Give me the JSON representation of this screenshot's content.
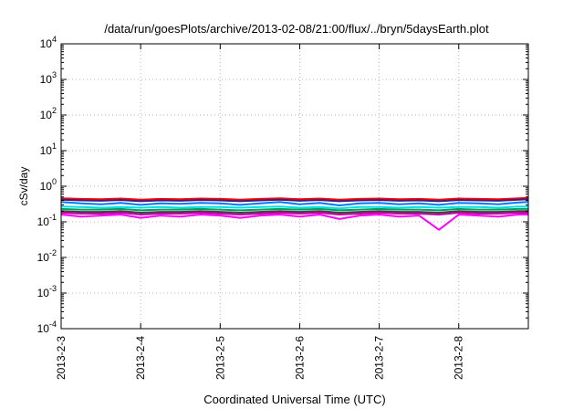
{
  "chart_data": {
    "type": "line",
    "title": "/data/run/goesPlots/archive/2013-02-08/21:00/flux/../bryn/5daysEarth.plot",
    "xlabel": "Coordinated Universal Time (UTC)",
    "ylabel": "cSv/day",
    "yscale": "log",
    "ylim": [
      0.0001,
      10000
    ],
    "xlim": [
      "2013-02-03",
      "2013-02-08 21:00"
    ],
    "grid": true,
    "y_ticks": [
      {
        "base": "10",
        "exp": "-4",
        "value": 0.0001
      },
      {
        "base": "10",
        "exp": "-3",
        "value": 0.001
      },
      {
        "base": "10",
        "exp": "-2",
        "value": 0.01
      },
      {
        "base": "10",
        "exp": "-1",
        "value": 0.1
      },
      {
        "base": "10",
        "exp": "0",
        "value": 1
      },
      {
        "base": "10",
        "exp": "1",
        "value": 10
      },
      {
        "base": "10",
        "exp": "2",
        "value": 100
      },
      {
        "base": "10",
        "exp": "3",
        "value": 1000
      },
      {
        "base": "10",
        "exp": "4",
        "value": 10000
      }
    ],
    "x_ticks": [
      "2013-2-3",
      "2013-2-4",
      "2013-2-5",
      "2013-2-6",
      "2013-2-7",
      "2013-2-8"
    ],
    "x": [
      "2013-02-03 00:00",
      "2013-02-03 06:00",
      "2013-02-03 12:00",
      "2013-02-03 18:00",
      "2013-02-04 00:00",
      "2013-02-04 06:00",
      "2013-02-04 12:00",
      "2013-02-04 18:00",
      "2013-02-05 00:00",
      "2013-02-05 06:00",
      "2013-02-05 12:00",
      "2013-02-05 18:00",
      "2013-02-06 00:00",
      "2013-02-06 06:00",
      "2013-02-06 12:00",
      "2013-02-06 18:00",
      "2013-02-07 00:00",
      "2013-02-07 06:00",
      "2013-02-07 12:00",
      "2013-02-07 18:00",
      "2013-02-08 00:00",
      "2013-02-08 06:00",
      "2013-02-08 12:00",
      "2013-02-08 18:00",
      "2013-02-08 21:00"
    ],
    "series": [
      {
        "color": "#ff0000",
        "values": [
          0.46,
          0.44,
          0.43,
          0.45,
          0.42,
          0.44,
          0.43,
          0.45,
          0.44,
          0.42,
          0.44,
          0.46,
          0.43,
          0.45,
          0.42,
          0.44,
          0.45,
          0.43,
          0.44,
          0.42,
          0.45,
          0.44,
          0.43,
          0.46,
          0.47
        ]
      },
      {
        "color": "#3c1e78",
        "values": [
          0.42,
          0.4,
          0.39,
          0.41,
          0.38,
          0.4,
          0.39,
          0.41,
          0.4,
          0.38,
          0.4,
          0.42,
          0.39,
          0.41,
          0.38,
          0.4,
          0.41,
          0.39,
          0.4,
          0.38,
          0.41,
          0.4,
          0.39,
          0.42,
          0.43
        ]
      },
      {
        "color": "#0078ff",
        "values": [
          0.36,
          0.33,
          0.31,
          0.34,
          0.3,
          0.33,
          0.32,
          0.34,
          0.33,
          0.3,
          0.33,
          0.36,
          0.31,
          0.34,
          0.29,
          0.33,
          0.34,
          0.31,
          0.33,
          0.3,
          0.34,
          0.33,
          0.31,
          0.35,
          0.36
        ]
      },
      {
        "color": "#00e0e0",
        "values": [
          0.27,
          0.26,
          0.25,
          0.26,
          0.25,
          0.26,
          0.25,
          0.26,
          0.26,
          0.25,
          0.26,
          0.27,
          0.25,
          0.26,
          0.24,
          0.26,
          0.26,
          0.25,
          0.26,
          0.25,
          0.26,
          0.26,
          0.25,
          0.27,
          0.27
        ]
      },
      {
        "color": "#00a060",
        "values": [
          0.23,
          0.22,
          0.22,
          0.23,
          0.21,
          0.22,
          0.22,
          0.23,
          0.22,
          0.21,
          0.22,
          0.23,
          0.22,
          0.23,
          0.21,
          0.22,
          0.23,
          0.22,
          0.22,
          0.21,
          0.23,
          0.22,
          0.22,
          0.23,
          0.23
        ]
      },
      {
        "color": "#404040",
        "values": [
          0.2,
          0.19,
          0.19,
          0.2,
          0.18,
          0.19,
          0.19,
          0.2,
          0.19,
          0.18,
          0.19,
          0.2,
          0.19,
          0.2,
          0.18,
          0.19,
          0.2,
          0.19,
          0.19,
          0.18,
          0.2,
          0.19,
          0.19,
          0.2,
          0.2
        ]
      },
      {
        "color": "#c000a0",
        "values": [
          0.18,
          0.17,
          0.17,
          0.18,
          0.16,
          0.17,
          0.17,
          0.18,
          0.17,
          0.16,
          0.17,
          0.18,
          0.17,
          0.18,
          0.16,
          0.17,
          0.18,
          0.17,
          0.17,
          0.16,
          0.18,
          0.17,
          0.17,
          0.18,
          0.18
        ]
      },
      {
        "color": "#ff00ff",
        "values": [
          0.16,
          0.14,
          0.15,
          0.16,
          0.13,
          0.15,
          0.14,
          0.16,
          0.15,
          0.13,
          0.15,
          0.16,
          0.14,
          0.16,
          0.12,
          0.15,
          0.16,
          0.14,
          0.15,
          0.06,
          0.16,
          0.15,
          0.14,
          0.16,
          0.16
        ]
      }
    ]
  }
}
